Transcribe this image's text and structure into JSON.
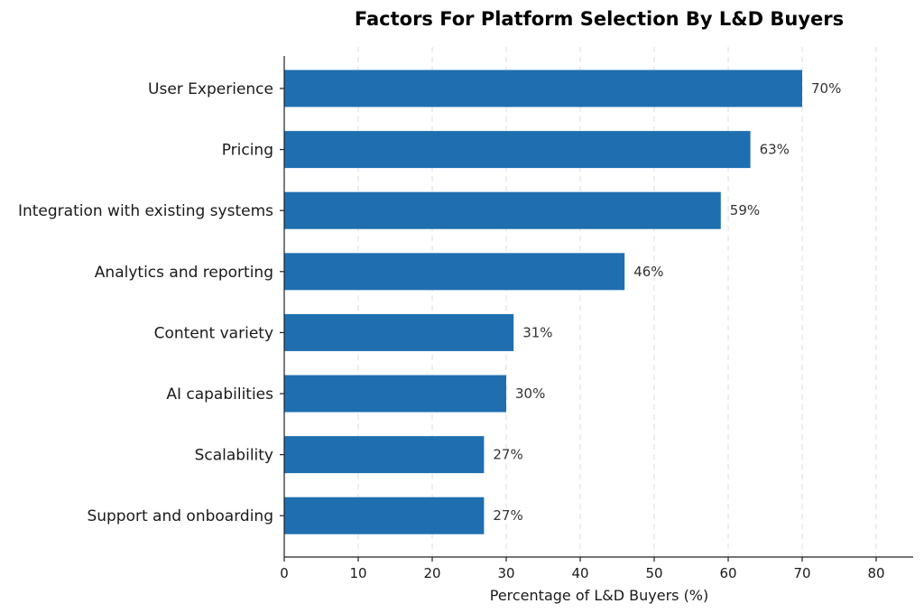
{
  "chart_data": {
    "type": "bar",
    "orientation": "horizontal",
    "title": "Factors For Platform Selection By L&D Buyers",
    "xlabel": "Percentage of L&D Buyers (%)",
    "ylabel": "",
    "xlim": [
      0,
      85
    ],
    "xticks": [
      0,
      10,
      20,
      30,
      40,
      50,
      60,
      70,
      80
    ],
    "grid": "vertical dashed",
    "bar_color": "#1f6fb0",
    "categories": [
      "User Experience",
      "Pricing",
      "Integration with existing systems",
      "Analytics and reporting",
      "Content variety",
      "AI capabilities",
      "Scalability",
      "Support and onboarding"
    ],
    "values": [
      70,
      63,
      59,
      46,
      31,
      30,
      27,
      27
    ],
    "value_labels": [
      "70%",
      "63%",
      "59%",
      "46%",
      "31%",
      "30%",
      "27%",
      "27%"
    ]
  }
}
